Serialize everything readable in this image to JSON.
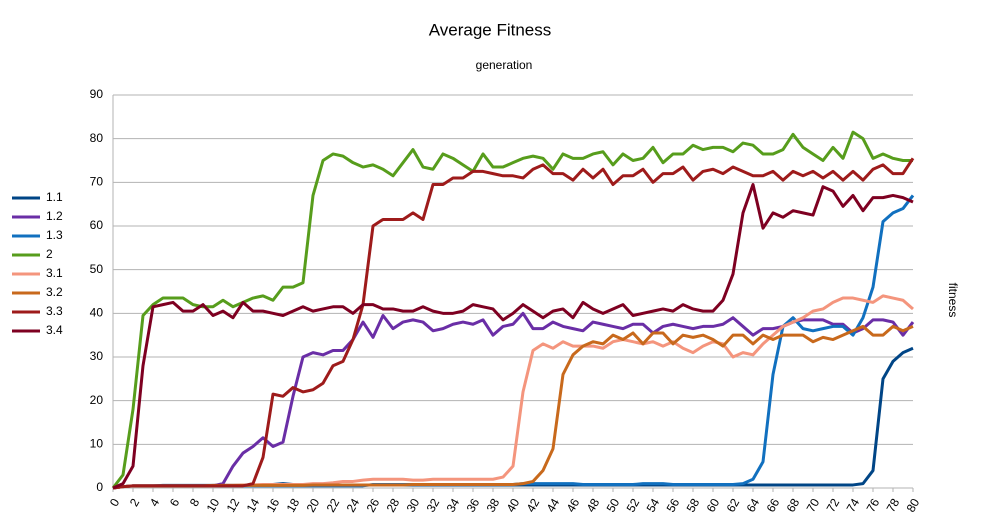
{
  "chart_data": {
    "type": "line",
    "title": "Average Fitness",
    "x_label": "generation",
    "y_label": "fitness",
    "x": [
      0,
      1,
      2,
      3,
      4,
      5,
      6,
      7,
      8,
      9,
      10,
      11,
      12,
      13,
      14,
      15,
      16,
      17,
      18,
      19,
      20,
      21,
      22,
      23,
      24,
      25,
      26,
      27,
      28,
      29,
      30,
      31,
      32,
      33,
      34,
      35,
      36,
      37,
      38,
      39,
      40,
      41,
      42,
      43,
      44,
      45,
      46,
      47,
      48,
      49,
      50,
      51,
      52,
      53,
      54,
      55,
      56,
      57,
      58,
      59,
      60,
      61,
      62,
      63,
      64,
      65,
      66,
      67,
      68,
      69,
      70,
      71,
      72,
      73,
      74,
      75,
      76,
      77,
      78,
      79,
      80
    ],
    "xlim": [
      0,
      80
    ],
    "xticks": [
      0,
      2,
      4,
      6,
      8,
      10,
      12,
      14,
      16,
      18,
      20,
      22,
      24,
      26,
      28,
      30,
      32,
      34,
      36,
      38,
      40,
      42,
      44,
      46,
      48,
      50,
      52,
      54,
      56,
      58,
      60,
      62,
      64,
      66,
      68,
      70,
      72,
      74,
      76,
      78,
      80
    ],
    "ylim": [
      0,
      90
    ],
    "yticks": [
      0,
      10,
      20,
      30,
      40,
      50,
      60,
      70,
      80,
      90
    ],
    "grid": true,
    "legend": "left",
    "series": [
      {
        "name": "1.1",
        "color": "#004586",
        "values": [
          0,
          0.3,
          0.5,
          0.5,
          0.5,
          0.6,
          0.6,
          0.6,
          0.6,
          0.6,
          0.6,
          0.6,
          0.6,
          0.6,
          0.6,
          0.7,
          0.8,
          1,
          0.8,
          0.8,
          0.8,
          0.7,
          0.7,
          0.7,
          0.7,
          0.7,
          0.7,
          0.7,
          0.7,
          0.7,
          0.7,
          0.7,
          0.7,
          0.7,
          0.7,
          0.7,
          0.7,
          0.7,
          0.7,
          0.7,
          0.7,
          0.7,
          0.7,
          0.7,
          0.7,
          0.7,
          0.7,
          0.7,
          0.7,
          0.7,
          0.7,
          0.7,
          0.7,
          0.7,
          0.7,
          0.7,
          0.7,
          0.7,
          0.7,
          0.7,
          0.7,
          0.7,
          0.7,
          0.7,
          0.7,
          0.7,
          0.7,
          0.7,
          0.7,
          0.7,
          0.7,
          0.7,
          0.7,
          0.7,
          0.7,
          1,
          4,
          25,
          29,
          31,
          32
        ]
      },
      {
        "name": "1.2",
        "color": "#6a2ea6",
        "values": [
          0,
          0.3,
          0.5,
          0.5,
          0.5,
          0.5,
          0.5,
          0.5,
          0.5,
          0.5,
          0.5,
          1,
          5,
          8,
          9.5,
          11.5,
          9.5,
          10.5,
          21,
          30,
          31,
          30.5,
          31.5,
          31.5,
          34,
          38,
          34.5,
          39.5,
          36.5,
          38,
          38.5,
          38,
          36,
          36.5,
          37.5,
          38,
          37.5,
          38.5,
          35,
          37,
          37.5,
          40,
          36.5,
          36.5,
          38,
          37,
          36.5,
          36,
          38,
          37.5,
          37,
          36.5,
          37.5,
          37.5,
          35.5,
          37,
          37.5,
          37,
          36.5,
          37,
          37,
          37.5,
          39,
          37,
          35,
          36.5,
          36.5,
          37,
          38,
          38.5,
          38.5,
          38.5,
          37.5,
          37.5,
          35.5,
          36.5,
          38.5,
          38.5,
          38,
          35,
          38
        ]
      },
      {
        "name": "1.3",
        "color": "#1170bf",
        "values": [
          0,
          0.3,
          0.5,
          0.5,
          0.5,
          0.5,
          0.5,
          0.5,
          0.5,
          0.5,
          0.5,
          0.5,
          0.5,
          0.5,
          0.5,
          0.5,
          0.5,
          0.5,
          0.5,
          0.5,
          0.5,
          0.5,
          0.5,
          0.5,
          0.5,
          0.5,
          0.8,
          0.8,
          0.8,
          0.8,
          0.8,
          0.8,
          0.8,
          0.8,
          0.8,
          0.8,
          0.8,
          0.8,
          0.8,
          0.8,
          0.8,
          1,
          1,
          1,
          1,
          1,
          1,
          0.8,
          0.8,
          0.8,
          0.8,
          0.8,
          0.8,
          1,
          1,
          1,
          0.8,
          0.8,
          0.8,
          0.8,
          0.8,
          0.8,
          0.8,
          1,
          2,
          6,
          26,
          37,
          39,
          36.5,
          36,
          36.5,
          37,
          37,
          35,
          39,
          46,
          61,
          63,
          64,
          67
        ]
      },
      {
        "name": "2",
        "color": "#579d1c",
        "values": [
          0,
          3,
          18,
          39.5,
          42,
          43.5,
          43.5,
          43.5,
          42,
          41.5,
          41.5,
          43,
          41.5,
          42.5,
          43.5,
          44,
          43,
          46,
          46,
          47,
          67,
          75,
          76.5,
          76,
          74.5,
          73.5,
          74,
          73,
          71.5,
          74.5,
          77.5,
          73.5,
          73,
          76.5,
          75.5,
          74,
          72.5,
          76.5,
          73.5,
          73.5,
          74.5,
          75.5,
          76,
          75.5,
          73,
          76.5,
          75.5,
          75.5,
          76.5,
          77,
          74,
          76.5,
          75,
          75.5,
          78,
          74.5,
          76.5,
          76.5,
          78.5,
          77.5,
          78,
          78,
          77,
          79,
          78.5,
          76.5,
          76.5,
          77.5,
          81,
          78,
          76.5,
          75,
          78,
          75.5,
          81.5,
          80,
          75.5,
          76.5,
          75.5,
          75,
          75
        ]
      },
      {
        "name": "3.1",
        "color": "#f4957d",
        "values": [
          0,
          0.3,
          0.5,
          0.5,
          0.5,
          0.5,
          0.5,
          0.5,
          0.5,
          0.5,
          0.5,
          0.6,
          0.6,
          0.7,
          0.7,
          0.8,
          0.8,
          0.8,
          0.8,
          0.8,
          1,
          1,
          1.2,
          1.5,
          1.5,
          1.8,
          2,
          2,
          2,
          2,
          1.8,
          1.8,
          2,
          2,
          2,
          2,
          2,
          2,
          2,
          2.5,
          5,
          22,
          31.5,
          33,
          32,
          33.5,
          32.5,
          32.5,
          32.5,
          32,
          33.5,
          34,
          33.5,
          33,
          33.5,
          32.5,
          33.5,
          32,
          31,
          32.5,
          33.5,
          33,
          30,
          31,
          30.5,
          33,
          35,
          37,
          38,
          39,
          40.5,
          41,
          42.5,
          43.5,
          43.5,
          43,
          42.5,
          44,
          43.5,
          43,
          41
        ]
      },
      {
        "name": "3.2",
        "color": "#c8691c",
        "values": [
          0,
          0.3,
          0.5,
          0.5,
          0.5,
          0.5,
          0.5,
          0.5,
          0.5,
          0.5,
          0.6,
          0.6,
          0.6,
          0.6,
          0.6,
          0.6,
          0.6,
          0.6,
          0.6,
          0.6,
          0.7,
          0.7,
          0.7,
          0.7,
          0.7,
          0.7,
          0.7,
          0.7,
          0.7,
          0.7,
          0.8,
          0.8,
          0.8,
          0.8,
          0.8,
          0.8,
          0.8,
          0.8,
          0.8,
          0.8,
          0.8,
          1,
          1.5,
          4,
          9,
          26,
          30.5,
          32.5,
          33.5,
          33,
          35,
          34,
          35.5,
          33,
          35.5,
          35.5,
          33,
          35,
          34.5,
          35,
          34,
          32.5,
          35,
          35,
          33,
          35,
          34,
          35,
          35,
          35,
          33.5,
          34.5,
          34,
          35,
          36,
          37,
          35,
          35,
          37,
          36,
          37
        ]
      },
      {
        "name": "3.3",
        "color": "#9e1b1b",
        "values": [
          0,
          0.3,
          0.5,
          0.5,
          0.5,
          0.5,
          0.5,
          0.5,
          0.5,
          0.5,
          0.5,
          0.5,
          0.5,
          0.5,
          1,
          7,
          21.5,
          21,
          23,
          22,
          22.5,
          24,
          28,
          29,
          34,
          42,
          60,
          61.5,
          61.5,
          61.5,
          63,
          61.5,
          69.5,
          69.5,
          71,
          71,
          72.5,
          72.5,
          72,
          71.5,
          71.5,
          71,
          73,
          74,
          72,
          72,
          70.5,
          73,
          71,
          73,
          69.5,
          71.5,
          71.5,
          73,
          70,
          72,
          72,
          73.5,
          70.5,
          72.5,
          73,
          72,
          73.5,
          72.5,
          71.5,
          71.5,
          72.5,
          70.5,
          72.5,
          71.5,
          72.5,
          71,
          72.5,
          70.5,
          72.5,
          70.5,
          73,
          74,
          72,
          72,
          75.5
        ]
      },
      {
        "name": "3.4",
        "color": "#7e0021",
        "values": [
          0,
          1,
          5,
          28,
          41.5,
          42,
          42.5,
          40.5,
          40.5,
          42,
          39.5,
          40.5,
          39,
          42.5,
          40.5,
          40.5,
          40,
          39.5,
          40.5,
          41.5,
          40.5,
          41,
          41.5,
          41.5,
          40,
          42,
          42,
          41,
          41,
          40.5,
          40.5,
          41.5,
          40.5,
          40,
          40,
          40.5,
          42,
          41.5,
          41,
          38.5,
          40,
          42,
          40.5,
          39,
          40.5,
          41,
          39,
          42.5,
          41,
          40,
          41,
          42,
          39.5,
          40,
          40.5,
          41,
          40.5,
          42,
          41,
          40.5,
          40.5,
          43,
          49,
          63,
          69.5,
          59.5,
          63,
          62,
          63.5,
          63,
          62.5,
          69,
          68,
          64.5,
          67,
          63.5,
          66.5,
          66.5,
          67,
          66.5,
          65.5
        ]
      }
    ]
  }
}
